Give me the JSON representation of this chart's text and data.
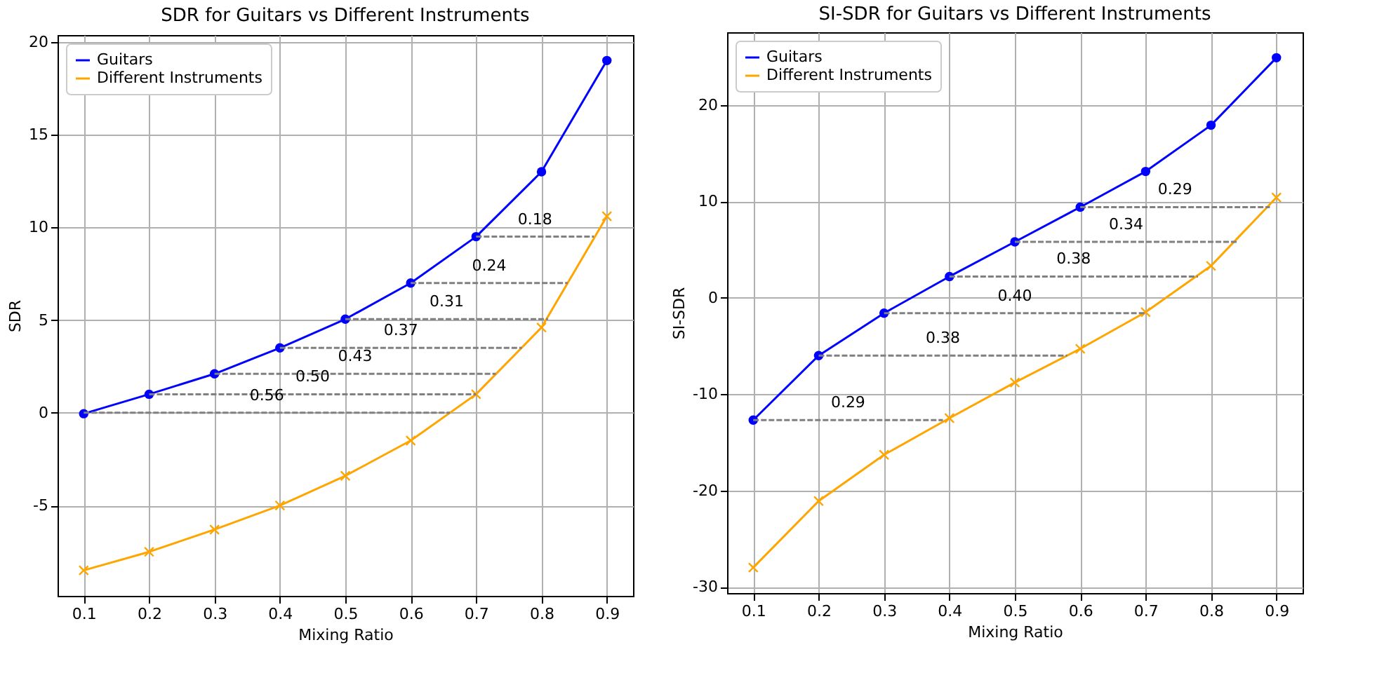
{
  "chart_data": [
    {
      "type": "line",
      "title": "SDR for Guitars vs Different Instruments",
      "xlabel": "Mixing Ratio",
      "ylabel": "SDR",
      "x": [
        0.1,
        0.2,
        0.3,
        0.4,
        0.5,
        0.6,
        0.7,
        0.8,
        0.9
      ],
      "series": [
        {
          "name": "Guitars",
          "color": "#0000ff",
          "marker": "circle",
          "values": [
            -0.05,
            1.0,
            2.1,
            3.5,
            5.05,
            7.0,
            9.5,
            13.0,
            19.0
          ]
        },
        {
          "name": "Different Instruments",
          "color": "#ffa500",
          "marker": "cross",
          "values": [
            -8.5,
            -7.5,
            -6.3,
            -5.0,
            -3.4,
            -1.5,
            1.0,
            4.6,
            10.6
          ]
        },
        {
          "type": "line",
          "color": "#808080",
          "line_style": "dashed",
          "marker": "none",
          "x": [
            0.1,
            0.66
          ],
          "values": [
            0,
            0
          ]
        },
        {
          "type": "line",
          "color": "#808080",
          "line_style": "dashed",
          "marker": "none",
          "x": [
            0.2,
            0.7
          ],
          "values": [
            1.0,
            1.0
          ]
        },
        {
          "type": "line",
          "color": "#808080",
          "line_style": "dashed",
          "marker": "none",
          "x": [
            0.3,
            0.73
          ],
          "values": [
            2.1,
            2.1
          ]
        },
        {
          "type": "line",
          "color": "#808080",
          "line_style": "dashed",
          "marker": "none",
          "x": [
            0.4,
            0.77
          ],
          "values": [
            3.5,
            3.5
          ]
        },
        {
          "type": "line",
          "color": "#808080",
          "line_style": "dashed",
          "marker": "none",
          "x": [
            0.5,
            0.81
          ],
          "values": [
            5.05,
            5.05
          ]
        },
        {
          "type": "line",
          "color": "#808080",
          "line_style": "dashed",
          "marker": "none",
          "x": [
            0.6,
            0.84
          ],
          "values": [
            7.0,
            7.0
          ]
        },
        {
          "type": "line",
          "color": "#808080",
          "line_style": "dashed",
          "marker": "none",
          "x": [
            0.7,
            0.88
          ],
          "values": [
            9.5,
            9.5
          ]
        }
      ],
      "annotations": [
        {
          "text": "0.56",
          "x": 0.38,
          "y": 0
        },
        {
          "text": "0.50",
          "x": 0.45,
          "y": 1.0
        },
        {
          "text": "0.43",
          "x": 0.515,
          "y": 2.1
        },
        {
          "text": "0.37",
          "x": 0.585,
          "y": 3.5
        },
        {
          "text": "0.31",
          "x": 0.655,
          "y": 5.05
        },
        {
          "text": "0.24",
          "x": 0.72,
          "y": 7.0
        },
        {
          "text": "0.18",
          "x": 0.79,
          "y": 9.5
        }
      ],
      "xlim": [
        0.06,
        0.94
      ],
      "ylim": [
        -9.875,
        20.375
      ],
      "xticks": [
        0.1,
        0.2,
        0.3,
        0.4,
        0.5,
        0.6,
        0.7,
        0.8,
        0.9
      ],
      "yticks": [
        -5,
        0,
        5,
        10,
        15,
        20
      ],
      "grid": true,
      "legend": "top left"
    },
    {
      "type": "line",
      "title": "SI-SDR for Guitars vs Different Instruments",
      "xlabel": "Mixing Ratio",
      "ylabel": "SI-SDR",
      "x": [
        0.1,
        0.2,
        0.3,
        0.4,
        0.5,
        0.6,
        0.7,
        0.8,
        0.9
      ],
      "series": [
        {
          "name": "Guitars",
          "color": "#0000ff",
          "marker": "circle",
          "values": [
            -12.7,
            -6.0,
            -1.6,
            2.2,
            5.8,
            9.4,
            13.1,
            17.9,
            24.9
          ]
        },
        {
          "name": "Different Instruments",
          "color": "#ffa500",
          "marker": "cross",
          "values": [
            -28.0,
            -21.1,
            -16.3,
            -12.5,
            -8.8,
            -5.3,
            -1.5,
            3.3,
            10.4
          ]
        },
        {
          "type": "line",
          "color": "#808080",
          "line_style": "dashed",
          "marker": "none",
          "x": [
            0.1,
            0.39
          ],
          "values": [
            -12.7,
            -12.7
          ]
        },
        {
          "type": "line",
          "color": "#808080",
          "line_style": "dashed",
          "marker": "none",
          "x": [
            0.2,
            0.58
          ],
          "values": [
            -6.0,
            -6.0
          ]
        },
        {
          "type": "line",
          "color": "#808080",
          "line_style": "dashed",
          "marker": "none",
          "x": [
            0.3,
            0.7
          ],
          "values": [
            -1.6,
            -1.6
          ]
        },
        {
          "type": "line",
          "color": "#808080",
          "line_style": "dashed",
          "marker": "none",
          "x": [
            0.4,
            0.78
          ],
          "values": [
            2.2,
            2.2
          ]
        },
        {
          "type": "line",
          "color": "#808080",
          "line_style": "dashed",
          "marker": "none",
          "x": [
            0.5,
            0.84
          ],
          "values": [
            5.8,
            5.8
          ]
        },
        {
          "type": "line",
          "color": "#808080",
          "line_style": "dashed",
          "marker": "none",
          "x": [
            0.6,
            0.89
          ],
          "values": [
            9.4,
            9.4
          ]
        }
      ],
      "annotations": [
        {
          "text": "0.29",
          "x": 0.245,
          "y": -12.7
        },
        {
          "text": "0.38",
          "x": 0.39,
          "y": -6.0
        },
        {
          "text": "0.40",
          "x": 0.5,
          "y": -1.6
        },
        {
          "text": "0.38",
          "x": 0.59,
          "y": 2.2
        },
        {
          "text": "0.34",
          "x": 0.67,
          "y": 5.8
        },
        {
          "text": "0.29",
          "x": 0.745,
          "y": 9.4
        }
      ],
      "xlim": [
        0.06,
        0.94
      ],
      "ylim": [
        -30.645,
        27.545
      ],
      "xticks": [
        0.1,
        0.2,
        0.3,
        0.4,
        0.5,
        0.6,
        0.7,
        0.8,
        0.9
      ],
      "yticks": [
        -30,
        -20,
        -10,
        0,
        10,
        20
      ],
      "grid": true,
      "legend": "top left"
    }
  ]
}
